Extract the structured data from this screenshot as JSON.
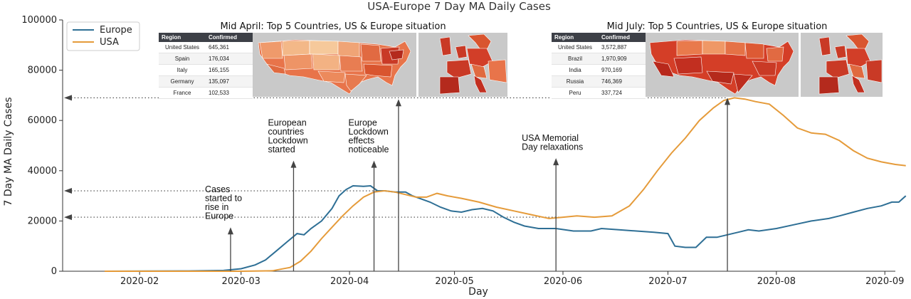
{
  "chart_data": {
    "type": "line",
    "title": "USA-Europe 7 Day MA Daily Cases",
    "xlabel": "Day",
    "ylabel": "7 Day MA Daily Cases",
    "ylim": [
      0,
      100000
    ],
    "xlim": [
      "2020-01-10",
      "2020-09-04"
    ],
    "grid": false,
    "legend": "top-left",
    "y_ticks": [
      "0",
      "20000",
      "40000",
      "60000",
      "80000",
      "100000"
    ],
    "x_ticks": [
      "2020-02",
      "2020-03",
      "2020-04",
      "2020-05",
      "2020-06",
      "2020-07",
      "2020-08",
      "2020-09"
    ],
    "series": [
      {
        "name": "Europe",
        "color": "#2e6f95",
        "points": [
          [
            "2020-01-22",
            0
          ],
          [
            "2020-02-15",
            100
          ],
          [
            "2020-02-25",
            300
          ],
          [
            "2020-03-01",
            1000
          ],
          [
            "2020-03-05",
            2500
          ],
          [
            "2020-03-08",
            4500
          ],
          [
            "2020-03-11",
            8000
          ],
          [
            "2020-03-14",
            11500
          ],
          [
            "2020-03-17",
            15000
          ],
          [
            "2020-03-19",
            14500
          ],
          [
            "2020-03-21",
            17000
          ],
          [
            "2020-03-24",
            20000
          ],
          [
            "2020-03-27",
            25000
          ],
          [
            "2020-03-29",
            30000
          ],
          [
            "2020-03-31",
            32500
          ],
          [
            "2020-04-02",
            34000
          ],
          [
            "2020-04-05",
            33800
          ],
          [
            "2020-04-07",
            34000
          ],
          [
            "2020-04-09",
            32000
          ],
          [
            "2020-04-11",
            32000
          ],
          [
            "2020-04-14",
            31500
          ],
          [
            "2020-04-17",
            31500
          ],
          [
            "2020-04-19",
            30000
          ],
          [
            "2020-04-21",
            29000
          ],
          [
            "2020-04-24",
            27500
          ],
          [
            "2020-04-27",
            25500
          ],
          [
            "2020-04-30",
            24000
          ],
          [
            "2020-05-03",
            23500
          ],
          [
            "2020-05-06",
            24500
          ],
          [
            "2020-05-09",
            25000
          ],
          [
            "2020-05-12",
            24000
          ],
          [
            "2020-05-15",
            21500
          ],
          [
            "2020-05-18",
            19500
          ],
          [
            "2020-05-21",
            18000
          ],
          [
            "2020-05-25",
            17000
          ],
          [
            "2020-05-30",
            17000
          ],
          [
            "2020-06-04",
            16000
          ],
          [
            "2020-06-09",
            16000
          ],
          [
            "2020-06-12",
            17000
          ],
          [
            "2020-06-17",
            16500
          ],
          [
            "2020-06-22",
            16000
          ],
          [
            "2020-06-27",
            15500
          ],
          [
            "2020-07-01",
            15000
          ],
          [
            "2020-07-03",
            10000
          ],
          [
            "2020-07-06",
            9500
          ],
          [
            "2020-07-09",
            9500
          ],
          [
            "2020-07-12",
            13500
          ],
          [
            "2020-07-15",
            13500
          ],
          [
            "2020-07-18",
            14500
          ],
          [
            "2020-07-21",
            15500
          ],
          [
            "2020-07-24",
            16500
          ],
          [
            "2020-07-27",
            16000
          ],
          [
            "2020-08-01",
            17000
          ],
          [
            "2020-08-06",
            18500
          ],
          [
            "2020-08-11",
            20000
          ],
          [
            "2020-08-16",
            21000
          ],
          [
            "2020-08-19",
            22000
          ],
          [
            "2020-08-23",
            23500
          ],
          [
            "2020-08-27",
            25000
          ],
          [
            "2020-08-31",
            26000
          ],
          [
            "2020-09-03",
            27500
          ],
          [
            "2020-09-05",
            27500
          ],
          [
            "2020-09-07",
            30000
          ]
        ]
      },
      {
        "name": "USA",
        "color": "#e59b3a",
        "points": [
          [
            "2020-01-22",
            0
          ],
          [
            "2020-03-01",
            0
          ],
          [
            "2020-03-10",
            200
          ],
          [
            "2020-03-15",
            1500
          ],
          [
            "2020-03-18",
            4000
          ],
          [
            "2020-03-21",
            8000
          ],
          [
            "2020-03-24",
            13000
          ],
          [
            "2020-03-27",
            17500
          ],
          [
            "2020-03-30",
            22000
          ],
          [
            "2020-04-02",
            26000
          ],
          [
            "2020-04-05",
            29500
          ],
          [
            "2020-04-08",
            31500
          ],
          [
            "2020-04-11",
            32000
          ],
          [
            "2020-04-14",
            31500
          ],
          [
            "2020-04-17",
            30500
          ],
          [
            "2020-04-20",
            29500
          ],
          [
            "2020-04-23",
            29500
          ],
          [
            "2020-04-26",
            31000
          ],
          [
            "2020-04-29",
            30000
          ],
          [
            "2020-05-03",
            29000
          ],
          [
            "2020-05-08",
            27500
          ],
          [
            "2020-05-13",
            25500
          ],
          [
            "2020-05-18",
            24000
          ],
          [
            "2020-05-23",
            22500
          ],
          [
            "2020-05-28",
            21000
          ],
          [
            "2020-06-01",
            21500
          ],
          [
            "2020-06-05",
            22000
          ],
          [
            "2020-06-10",
            21500
          ],
          [
            "2020-06-15",
            22000
          ],
          [
            "2020-06-20",
            26000
          ],
          [
            "2020-06-24",
            32500
          ],
          [
            "2020-06-28",
            40000
          ],
          [
            "2020-07-02",
            47000
          ],
          [
            "2020-07-06",
            53000
          ],
          [
            "2020-07-10",
            60000
          ],
          [
            "2020-07-14",
            65000
          ],
          [
            "2020-07-17",
            68000
          ],
          [
            "2020-07-20",
            69000
          ],
          [
            "2020-07-23",
            68500
          ],
          [
            "2020-07-26",
            67500
          ],
          [
            "2020-07-30",
            66500
          ],
          [
            "2020-08-03",
            62000
          ],
          [
            "2020-08-07",
            57000
          ],
          [
            "2020-08-11",
            55000
          ],
          [
            "2020-08-15",
            54500
          ],
          [
            "2020-08-19",
            52000
          ],
          [
            "2020-08-23",
            48000
          ],
          [
            "2020-08-27",
            45000
          ],
          [
            "2020-08-31",
            43500
          ],
          [
            "2020-09-04",
            42500
          ],
          [
            "2020-09-07",
            42000
          ]
        ]
      }
    ],
    "annotations": [
      {
        "text": [
          "Cases",
          "started to",
          "rise in",
          "Europe"
        ],
        "date": "2020-02-27",
        "arrow_to": 17500
      },
      {
        "text": [
          "European",
          "countries",
          "Lockdown",
          "started"
        ],
        "date": "2020-03-16",
        "arrow_to": 44000
      },
      {
        "text": [
          "Europe",
          "Lockdown",
          "effects",
          "noticeable"
        ],
        "date": "2020-04-08",
        "arrow_to": 44000
      },
      {
        "text": [
          "USA Memorial",
          "Day relaxations"
        ],
        "date": "2020-05-30",
        "arrow_to": 45000
      }
    ],
    "vertical_markers": [
      {
        "date": "2020-04-15",
        "arrow_to": 68500
      },
      {
        "date": "2020-07-18",
        "arrow_to": 69000
      }
    ],
    "reference_lines": [
      {
        "y": 69000,
        "to_date": "2020-07-18"
      },
      {
        "y": 32000,
        "to_date": "2020-04-11"
      },
      {
        "y": 21500,
        "to_date": "2020-06-01"
      }
    ]
  },
  "insets": [
    {
      "id": "april",
      "title": "Mid April: Top 5 Countries, US & Europe situation",
      "table_headers": [
        "Region",
        "Confirmed"
      ],
      "rows": [
        [
          "United States",
          "645,361"
        ],
        [
          "Spain",
          "176,034"
        ],
        [
          "Italy",
          "165,155"
        ],
        [
          "Germany",
          "135,097"
        ],
        [
          "France",
          "102,533"
        ]
      ]
    },
    {
      "id": "july",
      "title": "Mid July: Top 5 Countries, US & Europe situation",
      "table_headers": [
        "Region",
        "Confirmed"
      ],
      "rows": [
        [
          "United States",
          "3,572,887"
        ],
        [
          "Brazil",
          "1,970,909"
        ],
        [
          "India",
          "970,169"
        ],
        [
          "Russia",
          "746,369"
        ],
        [
          "Peru",
          "337,724"
        ]
      ]
    }
  ]
}
